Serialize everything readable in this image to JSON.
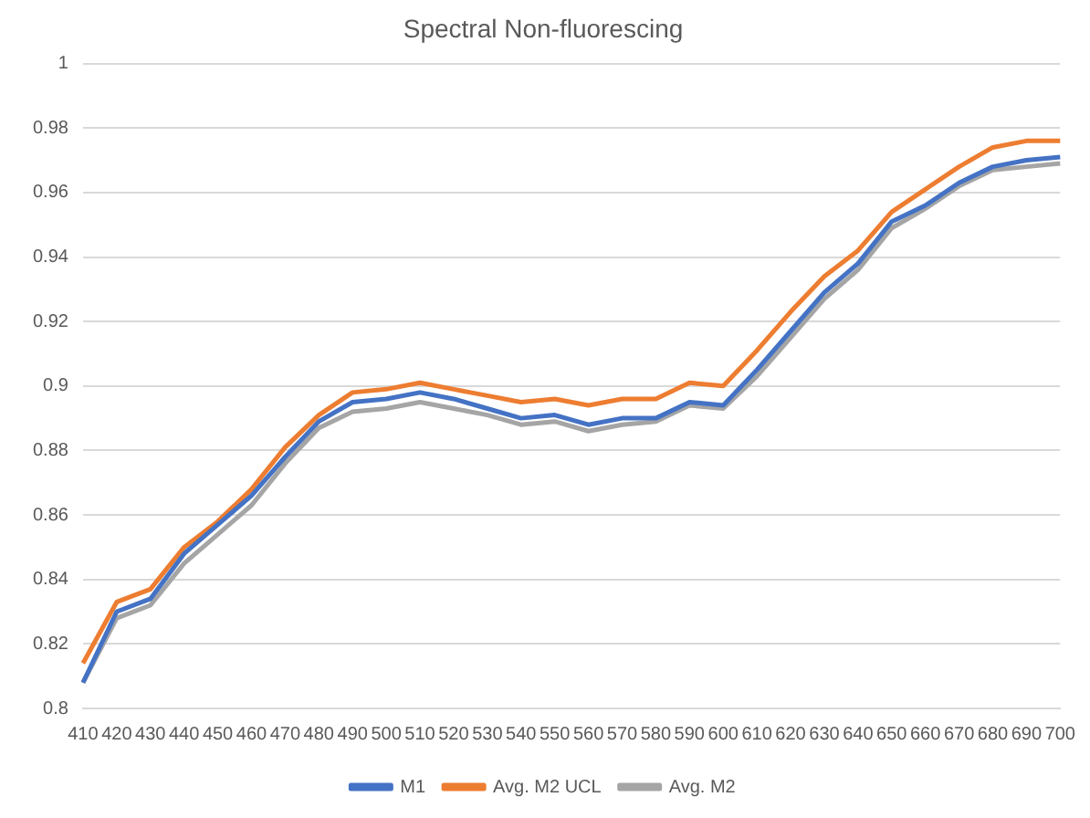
{
  "chart_data": {
    "type": "line",
    "title": "Spectral Non-fluorescing",
    "categories": [
      "410",
      "420",
      "430",
      "440",
      "450",
      "460",
      "470",
      "480",
      "490",
      "500",
      "510",
      "520",
      "530",
      "540",
      "550",
      "560",
      "570",
      "580",
      "590",
      "600",
      "610",
      "620",
      "630",
      "640",
      "650",
      "660",
      "670",
      "680",
      "690",
      "700"
    ],
    "series": [
      {
        "name": "M1",
        "color": "#4472c4",
        "values": [
          0.808,
          0.83,
          0.834,
          0.848,
          0.857,
          0.866,
          0.878,
          0.889,
          0.895,
          0.896,
          0.898,
          0.896,
          0.893,
          0.89,
          0.891,
          0.888,
          0.89,
          0.89,
          0.895,
          0.894,
          0.905,
          0.917,
          0.929,
          0.938,
          0.951,
          0.956,
          0.963,
          0.968,
          0.97,
          0.971
        ]
      },
      {
        "name": "Avg. M2 UCL",
        "color": "#ed7d31",
        "values": [
          0.814,
          0.833,
          0.837,
          0.85,
          0.858,
          0.868,
          0.881,
          0.891,
          0.898,
          0.899,
          0.901,
          0.899,
          0.897,
          0.895,
          0.896,
          0.894,
          0.896,
          0.896,
          0.901,
          0.9,
          0.911,
          0.923,
          0.934,
          0.942,
          0.954,
          0.961,
          0.968,
          0.974,
          0.976,
          0.976
        ]
      },
      {
        "name": "Avg. M2",
        "color": "#a5a5a5",
        "values": [
          0.808,
          0.828,
          0.832,
          0.845,
          0.854,
          0.863,
          0.876,
          0.887,
          0.892,
          0.893,
          0.895,
          0.893,
          0.891,
          0.888,
          0.889,
          0.886,
          0.888,
          0.889,
          0.894,
          0.893,
          0.903,
          0.915,
          0.927,
          0.936,
          0.949,
          0.955,
          0.962,
          0.967,
          0.968,
          0.969
        ]
      }
    ],
    "ylim": [
      0.8,
      1
    ],
    "yticks": [
      0.8,
      0.82,
      0.84,
      0.86,
      0.88,
      0.9,
      0.92,
      0.94,
      0.96,
      0.98,
      1
    ],
    "grid": "y",
    "legend": "bottom",
    "marker": "none",
    "line_style": "solid"
  }
}
